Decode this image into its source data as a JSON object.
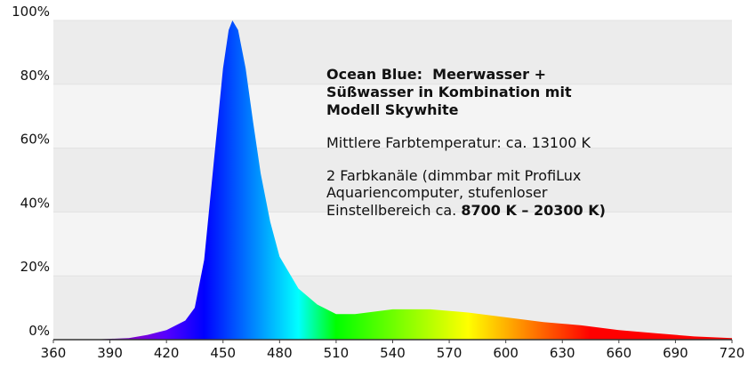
{
  "chart_data": {
    "type": "area",
    "x": [
      360,
      380,
      400,
      410,
      420,
      430,
      435,
      440,
      445,
      450,
      453,
      455,
      458,
      462,
      466,
      470,
      475,
      480,
      490,
      500,
      510,
      520,
      540,
      560,
      580,
      600,
      620,
      640,
      660,
      680,
      700,
      720
    ],
    "values": [
      0,
      0,
      0.5,
      1.5,
      3,
      6,
      10,
      25,
      55,
      85,
      97,
      100,
      97,
      85,
      68,
      52,
      37,
      26,
      16,
      11,
      8,
      8,
      9.5,
      9.5,
      8.5,
      7,
      5.5,
      4.5,
      3,
      2,
      1,
      0.5
    ],
    "xlim": [
      360,
      720
    ],
    "ylim": [
      0,
      100
    ],
    "xticks": [
      360,
      390,
      420,
      450,
      480,
      510,
      540,
      570,
      600,
      630,
      660,
      690,
      720
    ],
    "yticks": [
      {
        "value": 0,
        "label": "0%"
      },
      {
        "value": 20,
        "label": "20%"
      },
      {
        "value": 40,
        "label": "40%"
      },
      {
        "value": 60,
        "label": "60%"
      },
      {
        "value": 80,
        "label": "80%"
      },
      {
        "value": 100,
        "label": "100%"
      }
    ],
    "annotation": {
      "title_lines": [
        "Ocean Blue:  Meerwasser +",
        "Süßwasser in Kombination mit",
        "Modell Skywhite"
      ],
      "temperature": "Mittlere Farbtemperatur: ca. 13100 K",
      "body_lines": [
        "2 Farbkanäle (dimmbar mit ProfiLux",
        "Aquariencomputer, stufenloser",
        "Einstellbereich ca. "
      ],
      "body_bold": "8700 K – 20300 K)"
    }
  }
}
